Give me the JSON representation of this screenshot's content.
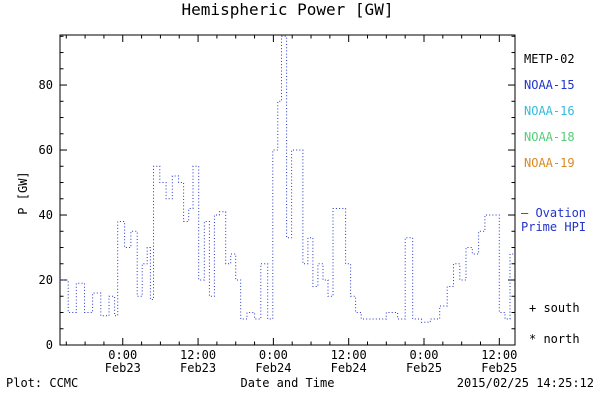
{
  "title": "Hemispheric Power [GW]",
  "footer": {
    "plot_credit": "Plot: CCMC",
    "xlabel": "Date and Time",
    "timestamp": "2015/02/25 14:25:12"
  },
  "legend": {
    "satellites": [
      {
        "label": "METP-02",
        "color": "#000000"
      },
      {
        "label": "NOAA-15",
        "color": "#2233cc"
      },
      {
        "label": "NOAA-16",
        "color": "#33bbdd"
      },
      {
        "label": "NOAA-18",
        "color": "#55cc77"
      },
      {
        "label": "NOAA-19",
        "color": "#dd8822"
      }
    ],
    "line_label_1": "— Ovation",
    "line_label_2": "Prime HPI",
    "line_label_color": "#2233cc",
    "south_label": "+ south",
    "north_label": "* north"
  },
  "chart_data": {
    "type": "line",
    "style": "dotted-step",
    "title": "Hemispheric Power [GW]",
    "xlabel": "Date and Time",
    "ylabel": "P [GW]",
    "line_color": "#2233cc",
    "grid": false,
    "legend_position": "right-outside",
    "ylim": [
      0,
      95.4
    ],
    "yticks_major": [
      0,
      20,
      40,
      60,
      80
    ],
    "y_minor_step": 5,
    "x_hours_span": [
      0,
      72.5
    ],
    "x_minor_step_hours": 3,
    "xticks_major": [
      {
        "hour": 10,
        "label_time": "0:00",
        "label_date": "Feb23"
      },
      {
        "hour": 22,
        "label_time": "12:00",
        "label_date": "Feb23"
      },
      {
        "hour": 34,
        "label_time": "0:00",
        "label_date": "Feb24"
      },
      {
        "hour": 46,
        "label_time": "12:00",
        "label_date": "Feb24"
      },
      {
        "hour": 58,
        "label_time": "0:00",
        "label_date": "Feb25"
      },
      {
        "hour": 70,
        "label_time": "12:00",
        "label_date": "Feb25"
      }
    ],
    "series": [
      {
        "name": "Ovation Prime HPI",
        "points": [
          [
            0,
            20
          ],
          [
            1.3,
            10
          ],
          [
            2.6,
            19
          ],
          [
            3.9,
            10
          ],
          [
            5.2,
            16
          ],
          [
            6.5,
            9
          ],
          [
            7.8,
            15
          ],
          [
            8.7,
            9
          ],
          [
            9.2,
            38
          ],
          [
            10.3,
            30
          ],
          [
            11.3,
            35
          ],
          [
            12.3,
            15
          ],
          [
            13.1,
            25
          ],
          [
            13.9,
            30
          ],
          [
            14.4,
            14
          ],
          [
            14.9,
            55
          ],
          [
            15.9,
            50
          ],
          [
            16.9,
            45
          ],
          [
            17.9,
            52
          ],
          [
            18.9,
            50
          ],
          [
            19.7,
            38
          ],
          [
            20.5,
            42
          ],
          [
            21.2,
            55
          ],
          [
            22.1,
            20
          ],
          [
            23,
            38
          ],
          [
            23.8,
            15
          ],
          [
            24.6,
            40
          ],
          [
            25.4,
            41
          ],
          [
            26.4,
            25
          ],
          [
            27.2,
            28
          ],
          [
            28,
            20
          ],
          [
            28.8,
            8
          ],
          [
            29.8,
            10
          ],
          [
            31,
            8
          ],
          [
            32,
            25
          ],
          [
            33.1,
            8
          ],
          [
            33.9,
            60
          ],
          [
            34.7,
            75
          ],
          [
            35.3,
            95
          ],
          [
            36.1,
            33
          ],
          [
            36.9,
            60
          ],
          [
            37.9,
            60
          ],
          [
            38.7,
            25
          ],
          [
            39.5,
            33
          ],
          [
            40.3,
            18
          ],
          [
            41.1,
            25
          ],
          [
            41.9,
            20
          ],
          [
            42.7,
            15
          ],
          [
            43.5,
            42
          ],
          [
            44.5,
            42
          ],
          [
            45.5,
            25
          ],
          [
            46.3,
            15
          ],
          [
            47.1,
            10
          ],
          [
            48,
            8
          ],
          [
            50,
            8
          ],
          [
            52,
            10
          ],
          [
            53.8,
            8
          ],
          [
            55,
            33
          ],
          [
            56.2,
            8
          ],
          [
            57.6,
            7
          ],
          [
            59,
            8
          ],
          [
            60.5,
            12
          ],
          [
            61.7,
            18
          ],
          [
            62.7,
            25
          ],
          [
            63.7,
            20
          ],
          [
            64.7,
            30
          ],
          [
            65.7,
            28
          ],
          [
            66.7,
            35
          ],
          [
            67.7,
            40
          ],
          [
            68.9,
            40
          ],
          [
            70,
            10
          ],
          [
            70.9,
            8
          ],
          [
            71.7,
            28
          ],
          [
            72.5,
            28
          ]
        ]
      }
    ]
  }
}
